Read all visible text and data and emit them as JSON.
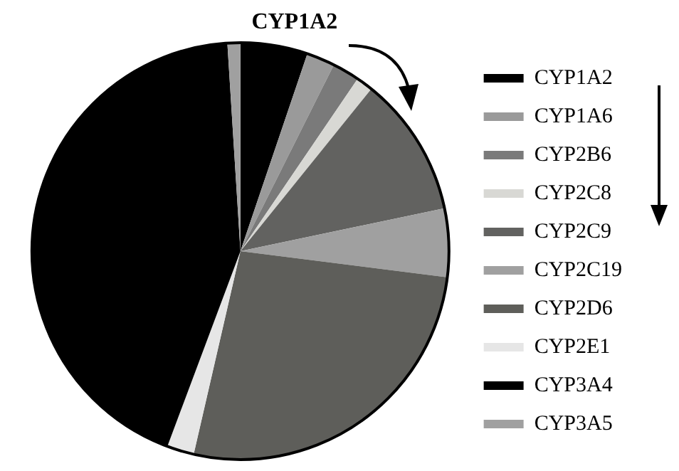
{
  "chart_data": {
    "type": "pie",
    "categories": [
      "CYP1A2",
      "CYP1A6",
      "CYP2B6",
      "CYP2C8",
      "CYP2C9",
      "CYP2C19",
      "CYP2D6",
      "CYP2E1",
      "CYP3A4",
      "CYP3A5"
    ],
    "values": [
      5.2,
      2.2,
      2.1,
      1.3,
      10.9,
      5.3,
      26.6,
      2.1,
      43.3,
      1.0
    ],
    "colors": [
      "#000000",
      "#9a9a9a",
      "#7a7a7a",
      "#d8d8d4",
      "#626260",
      "#a0a0a0",
      "#5e5e5a",
      "#e6e6e6",
      "#000000",
      "#a0a0a0"
    ],
    "annotations": [
      "CYP1A2"
    ],
    "legend": "right"
  }
}
